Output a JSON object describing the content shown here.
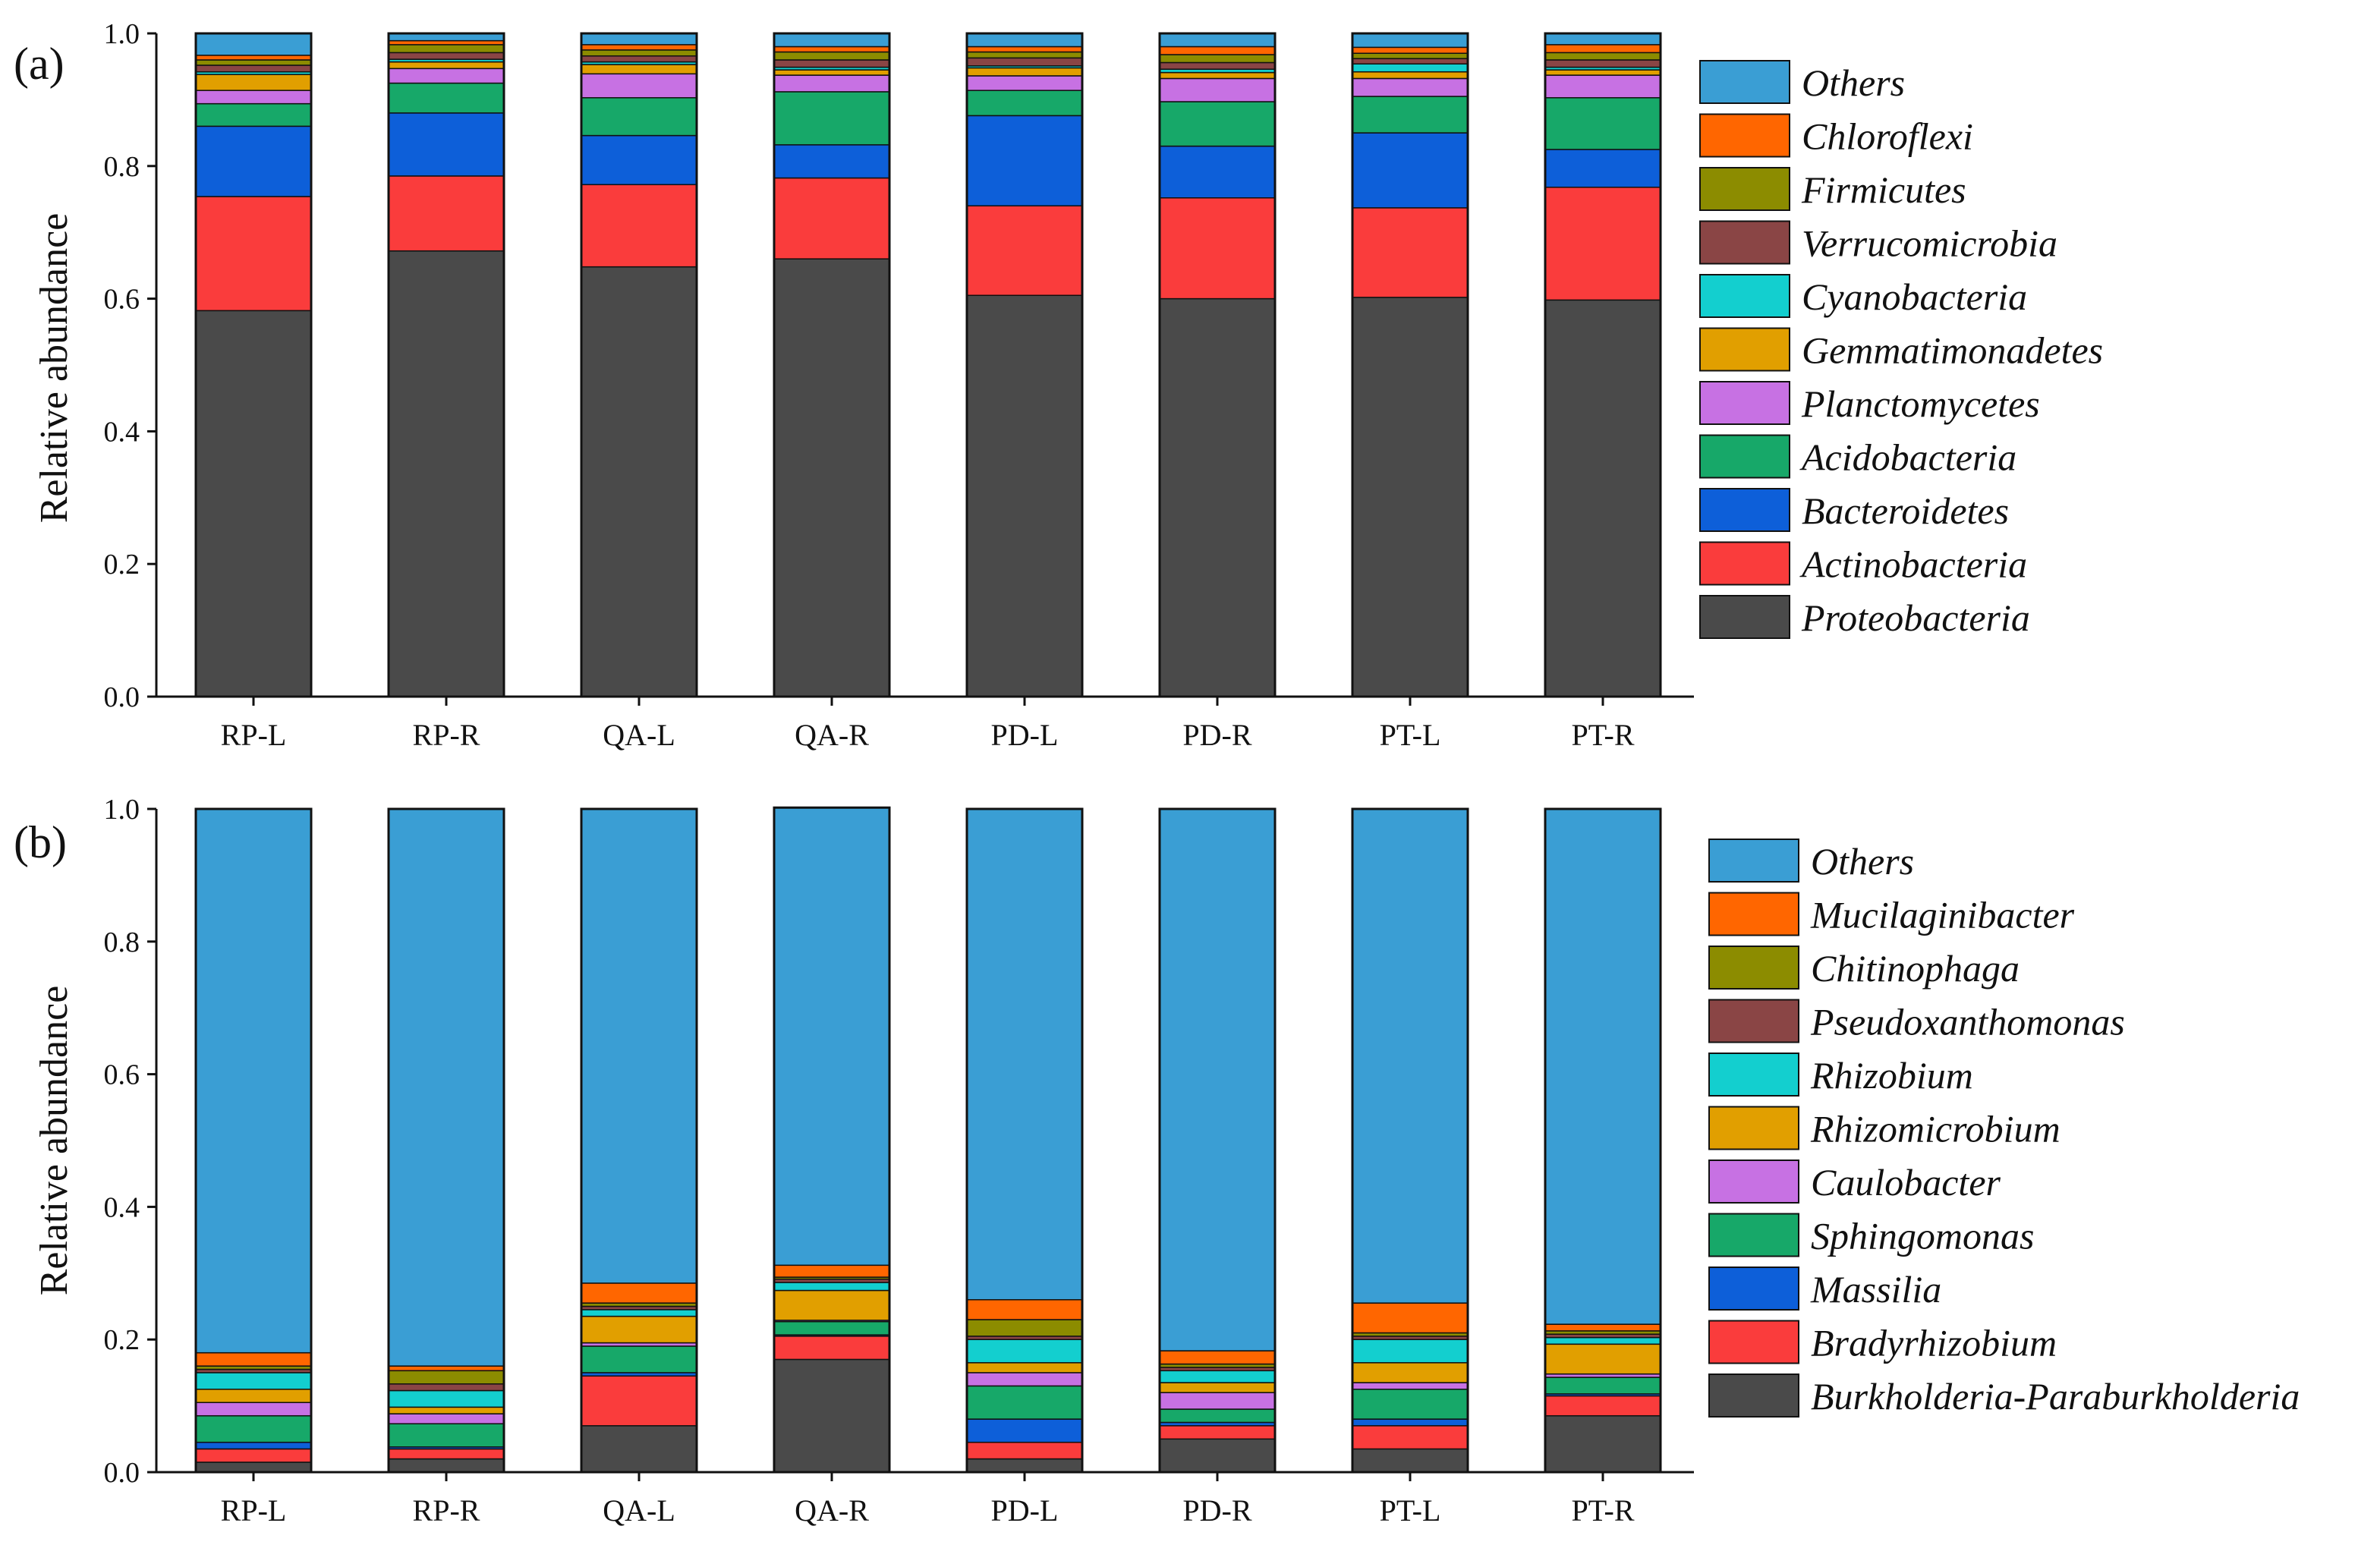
{
  "chart_data": [
    {
      "type": "bar",
      "stacked": true,
      "panel_label": "(a)",
      "ylabel": "Relative abundance",
      "xlabel": "",
      "ylim": [
        0,
        1.0
      ],
      "yticks": [
        "0.0",
        "0.2",
        "0.4",
        "0.6",
        "0.8",
        "1.0"
      ],
      "categories": [
        "RP-L",
        "RP-R",
        "QA-L",
        "QA-R",
        "PD-L",
        "PD-R",
        "PT-L",
        "PT-R"
      ],
      "legend_position": "right",
      "series": [
        {
          "name": "Proteobacteria",
          "color": "#4a4a4a",
          "values": [
            0.582,
            0.672,
            0.648,
            0.66,
            0.605,
            0.6,
            0.602,
            0.598
          ]
        },
        {
          "name": "Actinobacteria",
          "color": "#fa3c3c",
          "values": [
            0.172,
            0.113,
            0.124,
            0.122,
            0.135,
            0.152,
            0.135,
            0.17
          ]
        },
        {
          "name": "Bacteroidetes",
          "color": "#0d5fd9",
          "values": [
            0.106,
            0.095,
            0.074,
            0.05,
            0.136,
            0.078,
            0.113,
            0.057
          ]
        },
        {
          "name": "Acidobacteria",
          "color": "#17a869",
          "values": [
            0.034,
            0.045,
            0.057,
            0.08,
            0.038,
            0.067,
            0.055,
            0.078
          ]
        },
        {
          "name": "Planctomycetes",
          "color": "#c771e3",
          "values": [
            0.02,
            0.022,
            0.036,
            0.025,
            0.022,
            0.035,
            0.027,
            0.034
          ]
        },
        {
          "name": "Gemmatimonadetes",
          "color": "#e19f00",
          "values": [
            0.024,
            0.01,
            0.014,
            0.008,
            0.012,
            0.009,
            0.01,
            0.008
          ]
        },
        {
          "name": "Cyanobacteria",
          "color": "#13cfcf",
          "values": [
            0.004,
            0.004,
            0.004,
            0.004,
            0.003,
            0.005,
            0.012,
            0.004
          ]
        },
        {
          "name": "Verrucomicrobia",
          "color": "#8a4545",
          "values": [
            0.01,
            0.01,
            0.009,
            0.011,
            0.012,
            0.01,
            0.008,
            0.011
          ]
        },
        {
          "name": "Firmicutes",
          "color": "#8c8c00",
          "values": [
            0.008,
            0.012,
            0.009,
            0.012,
            0.009,
            0.012,
            0.008,
            0.011
          ]
        },
        {
          "name": "Chloroflexi",
          "color": "#ff6600",
          "values": [
            0.007,
            0.006,
            0.008,
            0.008,
            0.008,
            0.012,
            0.009,
            0.012
          ]
        },
        {
          "name": "Others",
          "color": "#3a9ed4",
          "values": [
            0.033,
            0.011,
            0.017,
            0.02,
            0.02,
            0.02,
            0.021,
            0.017
          ]
        }
      ]
    },
    {
      "type": "bar",
      "stacked": true,
      "panel_label": "(b)",
      "ylabel": "Relative abundance",
      "xlabel": "",
      "ylim": [
        0,
        1.0
      ],
      "yticks": [
        "0.0",
        "0.2",
        "0.4",
        "0.6",
        "0.8",
        "1.0"
      ],
      "categories": [
        "RP-L",
        "RP-R",
        "QA-L",
        "QA-R",
        "PD-L",
        "PD-R",
        "PT-L",
        "PT-R"
      ],
      "legend_position": "right",
      "series": [
        {
          "name": "Burkholderia-Paraburkholderia",
          "color": "#4a4a4a",
          "values": [
            0.015,
            0.02,
            0.07,
            0.17,
            0.02,
            0.05,
            0.035,
            0.085
          ]
        },
        {
          "name": "Bradyrhizobium",
          "color": "#fa3c3c",
          "values": [
            0.02,
            0.015,
            0.075,
            0.035,
            0.025,
            0.02,
            0.035,
            0.03
          ]
        },
        {
          "name": "Massilia",
          "color": "#0d5fd9",
          "values": [
            0.01,
            0.003,
            0.005,
            0.002,
            0.035,
            0.005,
            0.01,
            0.003
          ]
        },
        {
          "name": "Sphingomonas",
          "color": "#17a869",
          "values": [
            0.04,
            0.035,
            0.04,
            0.02,
            0.05,
            0.02,
            0.045,
            0.025
          ]
        },
        {
          "name": "Caulobacter",
          "color": "#c771e3",
          "values": [
            0.02,
            0.015,
            0.005,
            0.002,
            0.02,
            0.025,
            0.01,
            0.005
          ]
        },
        {
          "name": "Rhizomicrobium",
          "color": "#e19f00",
          "values": [
            0.02,
            0.01,
            0.04,
            0.045,
            0.015,
            0.015,
            0.03,
            0.045
          ]
        },
        {
          "name": "Rhizobium",
          "color": "#13cfcf",
          "values": [
            0.025,
            0.025,
            0.01,
            0.012,
            0.035,
            0.018,
            0.035,
            0.01
          ]
        },
        {
          "name": "Pseudoxanthomonas",
          "color": "#8a4545",
          "values": [
            0.005,
            0.01,
            0.005,
            0.005,
            0.005,
            0.005,
            0.005,
            0.005
          ]
        },
        {
          "name": "Chitinophaga",
          "color": "#8c8c00",
          "values": [
            0.005,
            0.02,
            0.005,
            0.003,
            0.025,
            0.005,
            0.005,
            0.005
          ]
        },
        {
          "name": "Mucilaginibacter",
          "color": "#ff6600",
          "values": [
            0.02,
            0.007,
            0.03,
            0.018,
            0.03,
            0.02,
            0.045,
            0.01
          ]
        },
        {
          "name": "Others",
          "color": "#3a9ed4",
          "values": [
            0.82,
            0.84,
            0.715,
            0.69,
            0.74,
            0.817,
            0.745,
            0.777
          ]
        }
      ]
    }
  ]
}
